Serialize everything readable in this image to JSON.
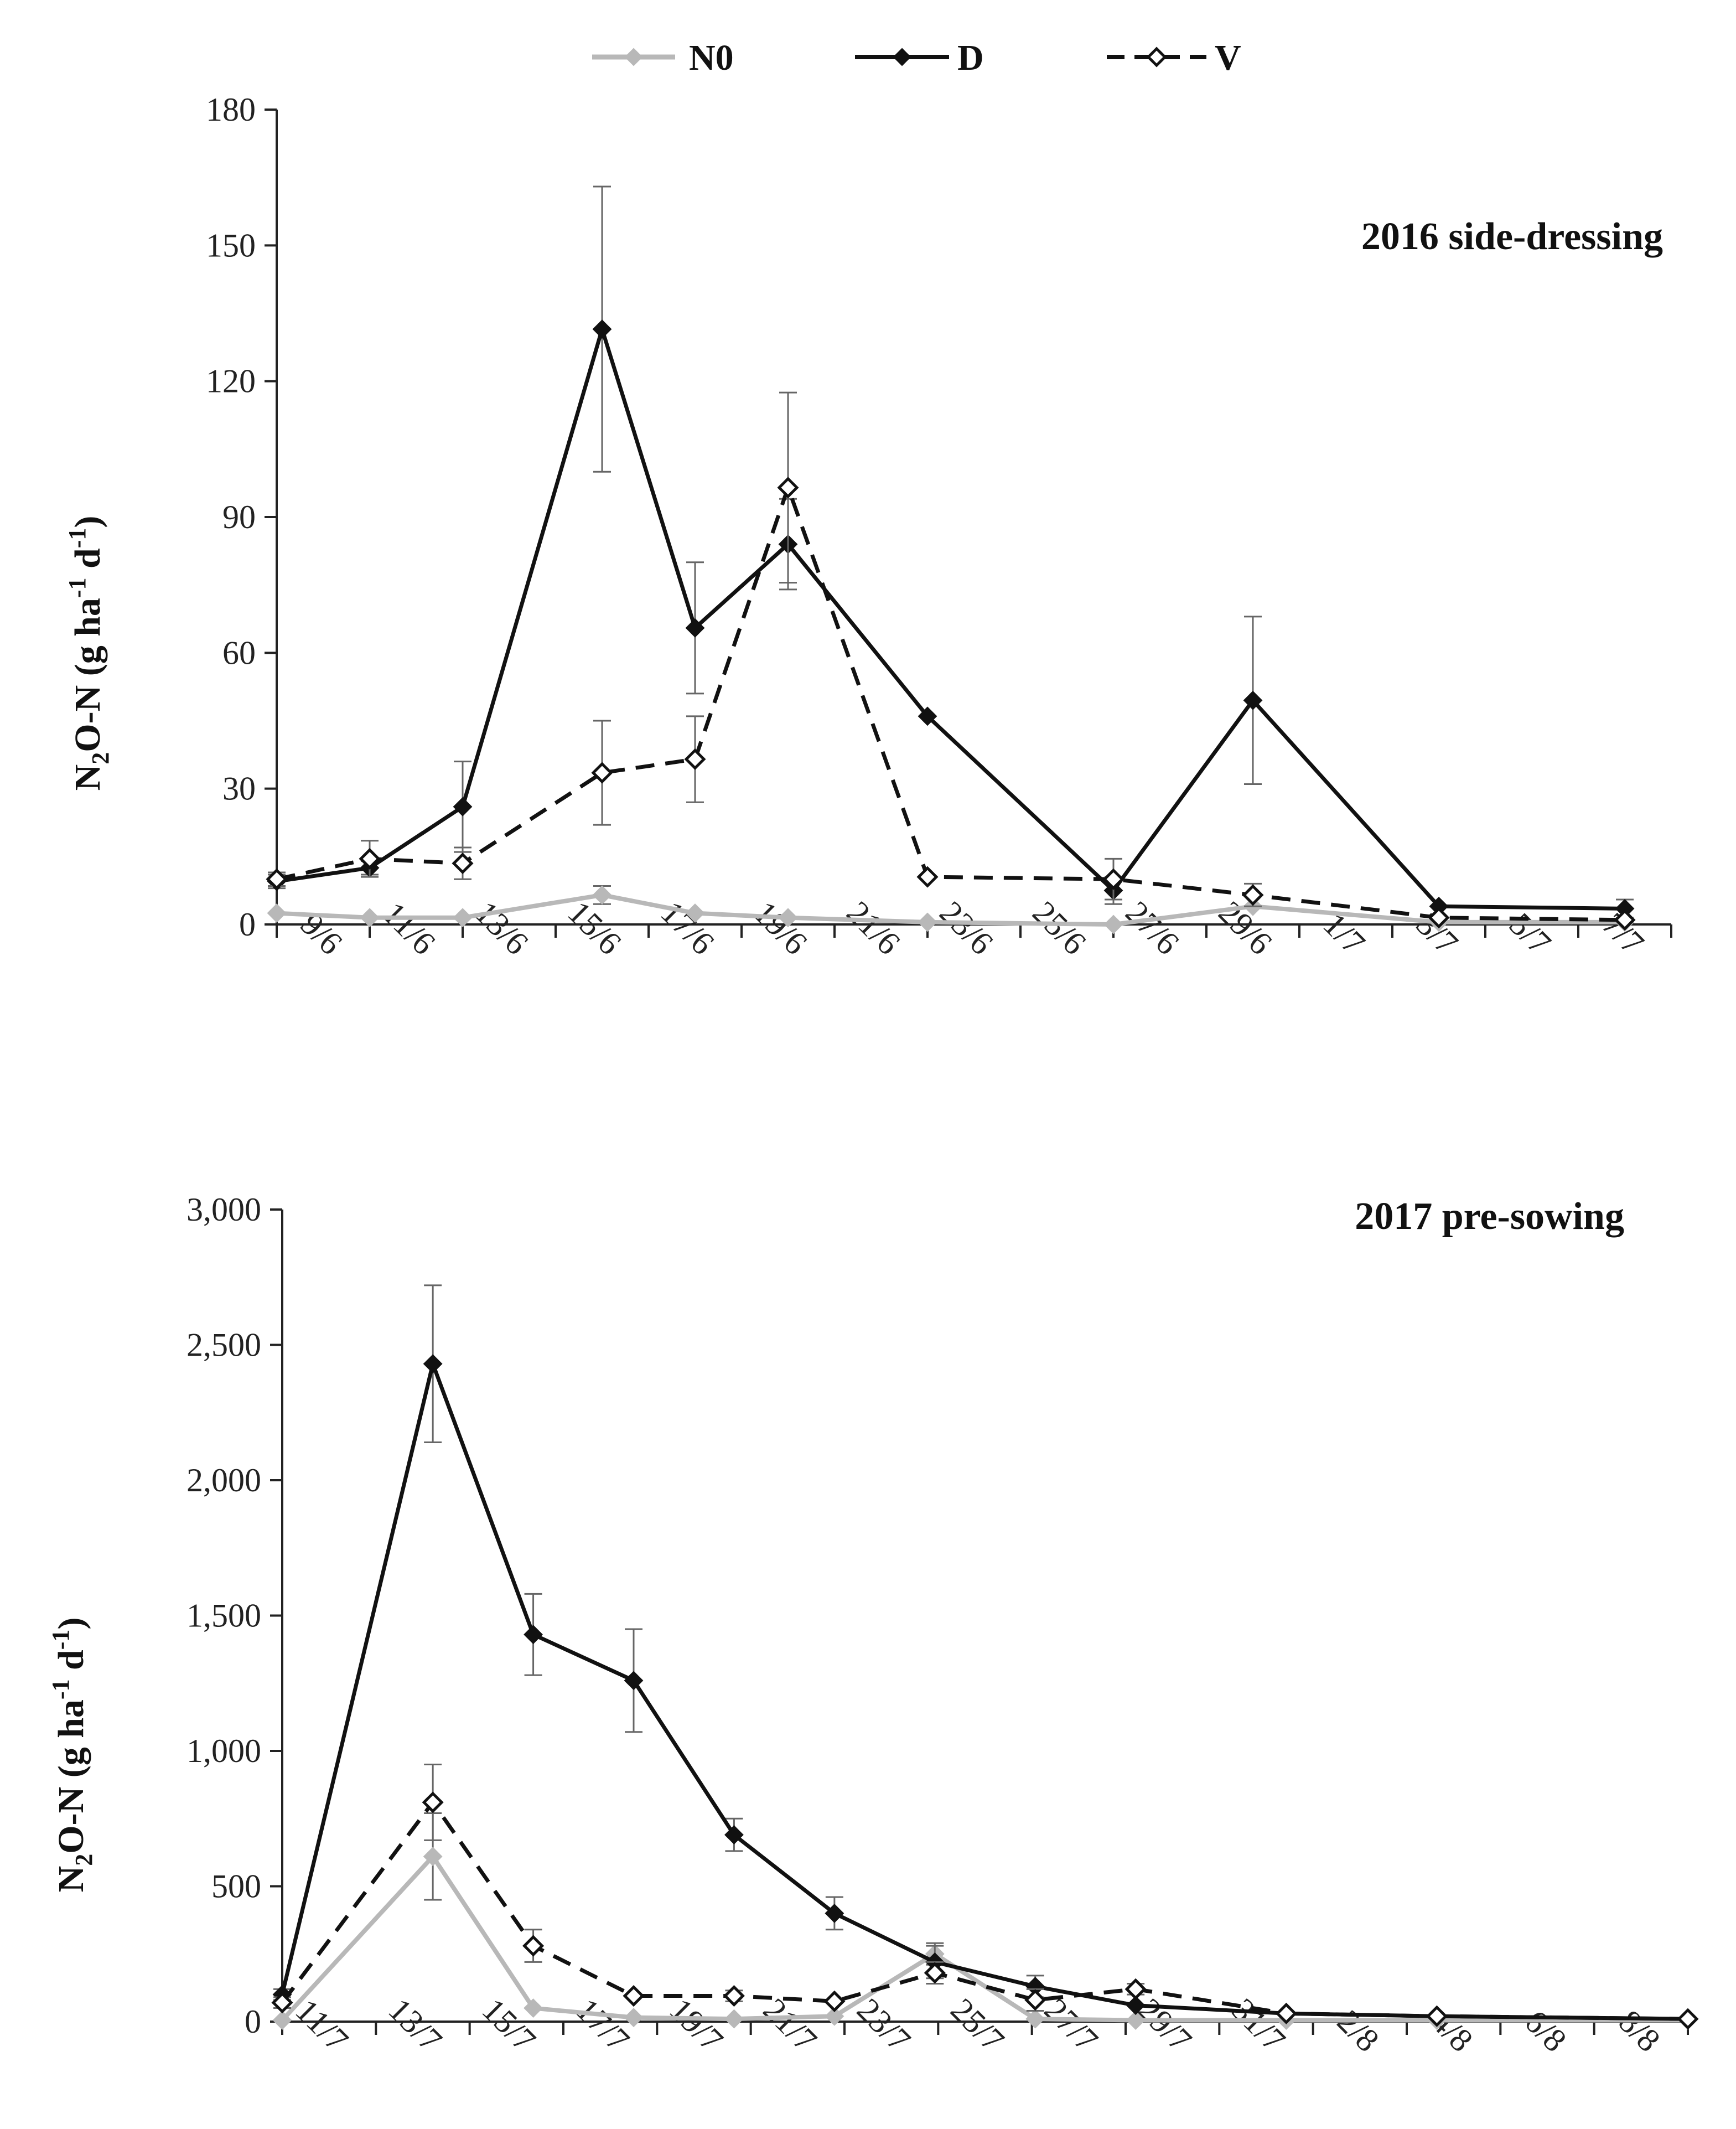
{
  "legend": [
    {
      "name": "N0",
      "color": "#b8b8b8",
      "dash": false
    },
    {
      "name": "D",
      "color": "#111111",
      "dash": false
    },
    {
      "name": "V",
      "color": "#111111",
      "dash": true
    }
  ],
  "chart_data": [
    {
      "type": "line",
      "title": "2016 side-dressing",
      "ylabel_main": "N",
      "ylabel_sub": "2",
      "ylabel_rest": "O-N (g ha",
      "ylabel_sup1": "-1",
      "ylabel_mid": " d",
      "ylabel_sup2": "-1",
      "ylabel_close": ")",
      "ylim": [
        0,
        180
      ],
      "yticks": [
        0,
        30,
        60,
        90,
        120,
        150,
        180
      ],
      "ytick_labels": [
        "0",
        "30",
        "60",
        "90",
        "120",
        "150",
        "180"
      ],
      "xlim": [
        0,
        30
      ],
      "xtick_labels": [
        "9/6",
        "11/6",
        "13/6",
        "15/6",
        "17/6",
        "19/6",
        "21/6",
        "23/6",
        "25/6",
        "27/6",
        "29/6",
        "1/7",
        "3/7",
        "5/7",
        "7/7"
      ],
      "series": [
        {
          "name": "N0",
          "x": [
            0,
            2,
            4,
            7,
            9,
            11,
            14,
            18,
            21,
            25,
            29
          ],
          "values": [
            2.5,
            1.5,
            1.5,
            6.5,
            2.5,
            1.5,
            0.5,
            0.0,
            4.0,
            0.5,
            0.5
          ],
          "err": [
            0,
            0,
            0,
            2,
            0,
            0,
            0,
            0,
            0,
            0,
            0
          ]
        },
        {
          "name": "D",
          "x": [
            0,
            2,
            4,
            7,
            9,
            11,
            14,
            18,
            21,
            25,
            29
          ],
          "values": [
            9.5,
            12.5,
            26,
            131.5,
            65.5,
            84,
            46,
            7.5,
            49.5,
            4,
            3.5
          ],
          "err": [
            1.5,
            1.5,
            10,
            31.5,
            14.5,
            10,
            0,
            3,
            18.5,
            0,
            2
          ]
        },
        {
          "name": "V",
          "x": [
            0,
            2,
            4,
            7,
            9,
            11,
            14,
            18,
            21,
            25,
            29
          ],
          "values": [
            10,
            14.5,
            13.5,
            33.5,
            36.5,
            96.5,
            10.5,
            10,
            6.5,
            1.5,
            1
          ],
          "err": [
            1.5,
            4,
            3.5,
            11.5,
            9.5,
            21,
            0,
            4.5,
            2.5,
            0,
            0
          ]
        }
      ]
    },
    {
      "type": "line",
      "title": "2017 pre-sowing",
      "ylabel_main": "N",
      "ylabel_sub": "2",
      "ylabel_rest": "O-N (g ha",
      "ylabel_sup1": "-1",
      "ylabel_mid": " d",
      "ylabel_sup2": "-1",
      "ylabel_close": ")",
      "ylim": [
        0,
        3000
      ],
      "yticks": [
        0,
        500,
        1000,
        1500,
        2000,
        2500,
        3000
      ],
      "ytick_labels": [
        "0",
        "500",
        "1,000",
        "1,500",
        "2,000",
        "2,500",
        "3,000"
      ],
      "xlim": [
        0,
        28
      ],
      "xtick_labels": [
        "11/7",
        "13/7",
        "15/7",
        "17/7",
        "19/7",
        "21/7",
        "23/7",
        "25/7",
        "27/7",
        "29/7",
        "31/7",
        "2/8",
        "4/8",
        "6/8",
        "8/8"
      ],
      "series": [
        {
          "name": "N0",
          "x": [
            0,
            3,
            5,
            7,
            9,
            11,
            13,
            15,
            17,
            20,
            23,
            28
          ],
          "values": [
            5,
            610,
            50,
            15,
            10,
            20,
            250,
            10,
            5,
            5,
            5,
            5
          ],
          "err": [
            0,
            160,
            0,
            0,
            0,
            0,
            40,
            0,
            0,
            0,
            0,
            0
          ]
        },
        {
          "name": "D",
          "x": [
            0,
            3,
            5,
            7,
            9,
            11,
            13,
            15,
            17,
            20,
            23,
            28
          ],
          "values": [
            100,
            2430,
            1430,
            1260,
            690,
            400,
            220,
            130,
            60,
            30,
            20,
            10
          ],
          "err": [
            20,
            290,
            150,
            190,
            60,
            60,
            60,
            40,
            0,
            0,
            0,
            0
          ]
        },
        {
          "name": "V",
          "x": [
            0,
            3,
            5,
            7,
            9,
            11,
            13,
            15,
            17,
            20,
            23,
            28
          ],
          "values": [
            70,
            810,
            280,
            95,
            95,
            75,
            180,
            80,
            120,
            30,
            20,
            10
          ],
          "err": [
            20,
            140,
            60,
            0,
            20,
            0,
            40,
            40,
            20,
            0,
            0,
            0
          ]
        }
      ]
    }
  ]
}
